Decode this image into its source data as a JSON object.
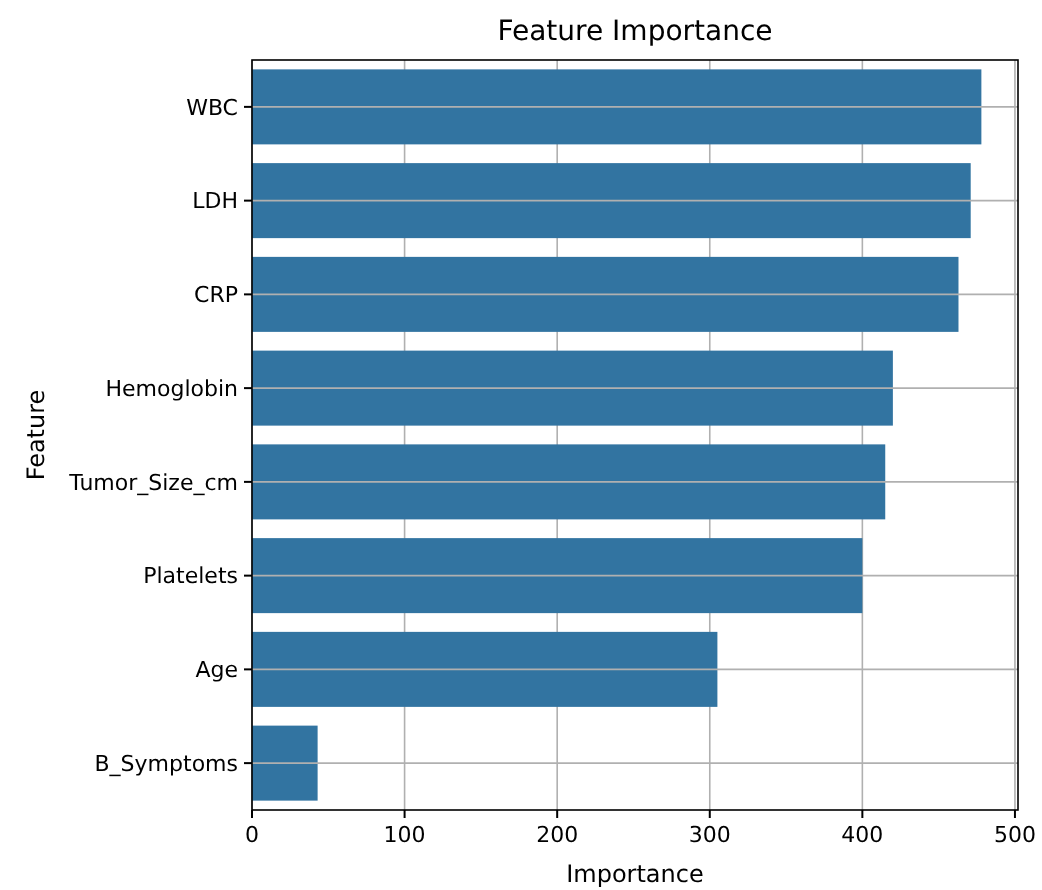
{
  "chart_data": {
    "type": "bar",
    "orientation": "horizontal",
    "title": "Feature Importance",
    "xlabel": "Importance",
    "ylabel": "Feature",
    "categories": [
      "WBC",
      "LDH",
      "CRP",
      "Hemoglobin",
      "Tumor_Size_cm",
      "Platelets",
      "Age",
      "B_Symptoms"
    ],
    "values": [
      478,
      471,
      463,
      420,
      415,
      400,
      305,
      43
    ],
    "color": "#3274a1",
    "xlim": [
      0,
      502
    ],
    "xticks": [
      0,
      100,
      200,
      300,
      400,
      500
    ],
    "grid": true
  }
}
